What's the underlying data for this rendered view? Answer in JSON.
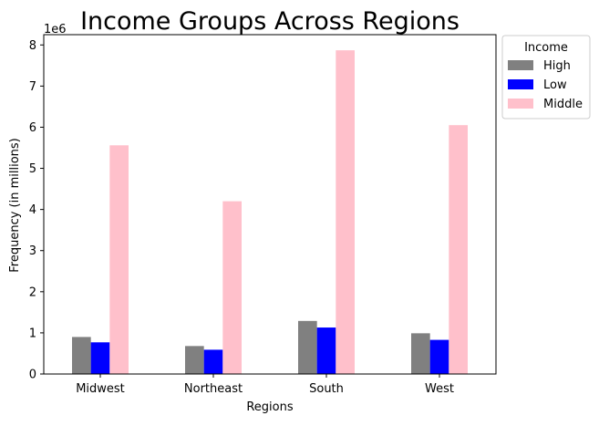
{
  "chart_data": {
    "type": "bar",
    "title": "Income Groups Across Regions",
    "xlabel": "Regions",
    "ylabel": "Frequency (in millions)",
    "y_offset_label": "1e6",
    "categories": [
      "Midwest",
      "Northeast",
      "South",
      "West"
    ],
    "series": [
      {
        "name": "High",
        "color": "#808080",
        "values": [
          900000,
          680000,
          1290000,
          990000
        ]
      },
      {
        "name": "Low",
        "color": "#0000ff",
        "values": [
          770000,
          590000,
          1130000,
          830000
        ]
      },
      {
        "name": "Middle",
        "color": "#ffc0cb",
        "values": [
          5560000,
          4200000,
          7870000,
          6050000
        ]
      }
    ],
    "ylim": [
      0,
      8250000
    ],
    "y_ticks": [
      0,
      1000000,
      2000000,
      3000000,
      4000000,
      5000000,
      6000000,
      7000000,
      8000000
    ],
    "y_tick_labels": [
      "0",
      "1",
      "2",
      "3",
      "4",
      "5",
      "6",
      "7",
      "8"
    ],
    "grid": false,
    "legend": {
      "title": "Income",
      "placement": "outside-top-right"
    }
  }
}
